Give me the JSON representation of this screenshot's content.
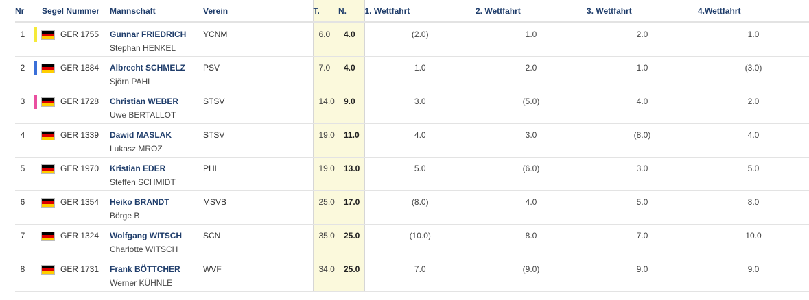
{
  "headers": {
    "nr": "Nr",
    "sail": "Segel Nummer",
    "team": "Mannschaft",
    "club": "Verein",
    "total": "T.",
    "net": "N.",
    "race1": "1. Wettfahrt",
    "race2": "2. Wettfahrt",
    "race3": "3. Wettfahrt",
    "race4": "4.Wettfahrt"
  },
  "rows": [
    {
      "nr": "1",
      "marker": "#f5ea3a",
      "flag": "germany-flag",
      "sail": "GER 1755",
      "skipper": "Gunnar FRIEDRICH",
      "crew": "Stephan HENKEL",
      "club": "YCNM",
      "total": "6.0",
      "net": "4.0",
      "r1": "(2.0)",
      "r2": "1.0",
      "r3": "2.0",
      "r4": "1.0"
    },
    {
      "nr": "2",
      "marker": "#3a6fd8",
      "flag": "germany-flag",
      "sail": "GER 1884",
      "skipper": "Albrecht SCHMELZ",
      "crew": "Sjörn PAHL",
      "club": "PSV",
      "total": "7.0",
      "net": "4.0",
      "r1": "1.0",
      "r2": "2.0",
      "r3": "1.0",
      "r4": "(3.0)"
    },
    {
      "nr": "3",
      "marker": "#ea4fa0",
      "flag": "germany-flag",
      "sail": "GER 1728",
      "skipper": "Christian WEBER",
      "crew": "Uwe BERTALLOT",
      "club": "STSV",
      "total": "14.0",
      "net": "9.0",
      "r1": "3.0",
      "r2": "(5.0)",
      "r3": "4.0",
      "r4": "2.0"
    },
    {
      "nr": "4",
      "marker": "",
      "flag": "germany-flag",
      "sail": "GER 1339",
      "skipper": "Dawid MASLAK",
      "crew": "Lukasz MROZ",
      "club": "STSV",
      "total": "19.0",
      "net": "11.0",
      "r1": "4.0",
      "r2": "3.0",
      "r3": "(8.0)",
      "r4": "4.0"
    },
    {
      "nr": "5",
      "marker": "",
      "flag": "germany-flag",
      "sail": "GER 1970",
      "skipper": "Kristian EDER",
      "crew": "Steffen SCHMIDT",
      "club": "PHL",
      "total": "19.0",
      "net": "13.0",
      "r1": "5.0",
      "r2": "(6.0)",
      "r3": "3.0",
      "r4": "5.0"
    },
    {
      "nr": "6",
      "marker": "",
      "flag": "germany-flag",
      "sail": "GER 1354",
      "skipper": "Heiko BRANDT",
      "crew": "Börge B",
      "club": "MSVB",
      "total": "25.0",
      "net": "17.0",
      "r1": "(8.0)",
      "r2": "4.0",
      "r3": "5.0",
      "r4": "8.0"
    },
    {
      "nr": "7",
      "marker": "",
      "flag": "germany-flag",
      "sail": "GER 1324",
      "skipper": "Wolfgang WITSCH",
      "crew": "Charlotte WITSCH",
      "club": "SCN",
      "total": "35.0",
      "net": "25.0",
      "r1": "(10.0)",
      "r2": "8.0",
      "r3": "7.0",
      "r4": "10.0"
    },
    {
      "nr": "8",
      "marker": "",
      "flag": "germany-flag",
      "sail": "GER 1731",
      "skipper": "Frank BÖTTCHER",
      "crew": "Werner KÜHNLE",
      "club": "WVF",
      "total": "34.0",
      "net": "25.0",
      "r1": "7.0",
      "r2": "(9.0)",
      "r3": "9.0",
      "r4": "9.0"
    }
  ]
}
